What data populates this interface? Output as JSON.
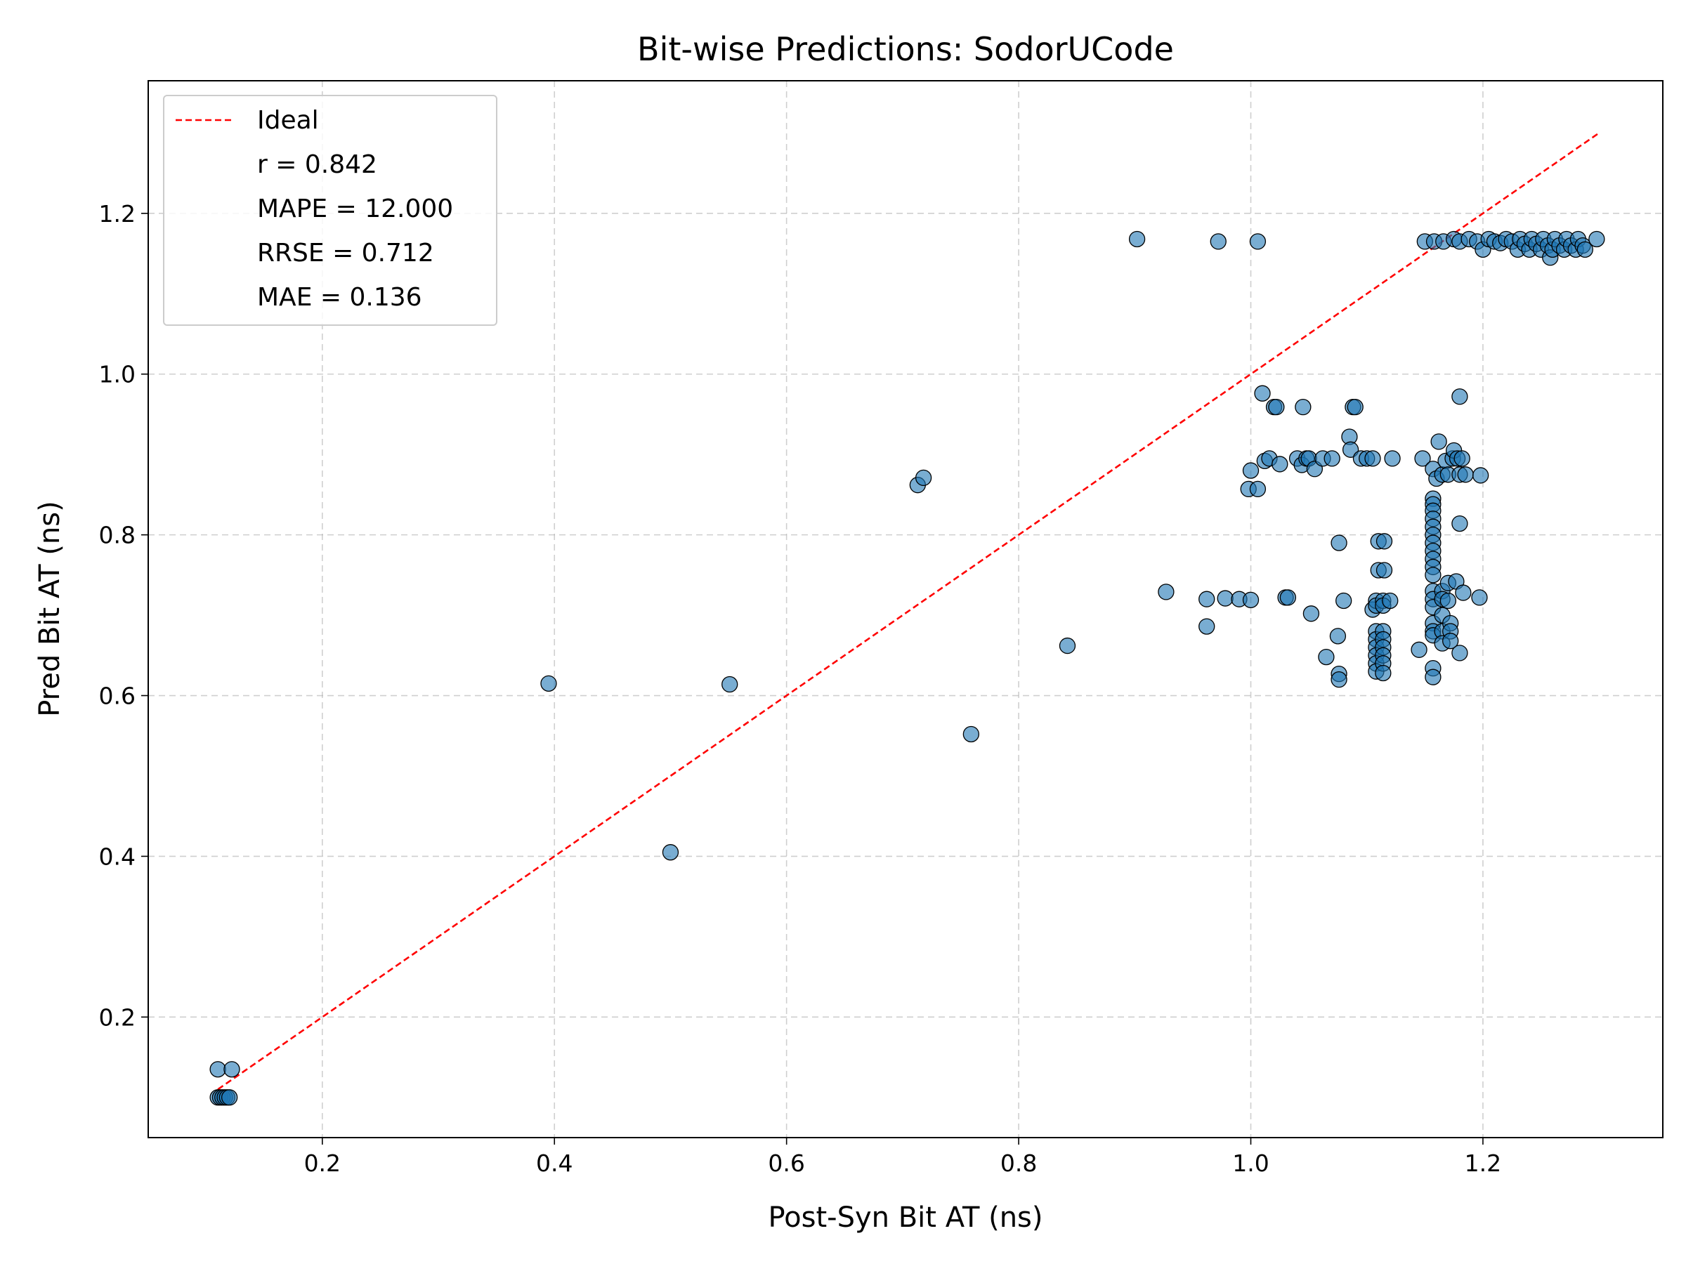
{
  "chart_data": {
    "type": "scatter",
    "title": "Bit-wise Predictions: SodorUCode",
    "xlabel": "Post-Syn Bit AT (ns)",
    "ylabel": "Pred Bit AT (ns)",
    "xlim": [
      0.05,
      1.355
    ],
    "ylim": [
      0.05,
      1.365
    ],
    "xticks": [
      0.2,
      0.4,
      0.6,
      0.8,
      1.0,
      1.2
    ],
    "yticks": [
      0.2,
      0.4,
      0.6,
      0.8,
      1.0,
      1.2
    ],
    "xtick_labels": [
      "0.2",
      "0.4",
      "0.6",
      "0.8",
      "1.0",
      "1.2"
    ],
    "ytick_labels": [
      "0.2",
      "0.4",
      "0.6",
      "0.8",
      "1.0",
      "1.2"
    ],
    "grid": true,
    "legend_position": "top-left",
    "ideal_line": {
      "name": "Ideal",
      "x": [
        0.11,
        1.3
      ],
      "y": [
        0.11,
        1.3
      ],
      "color": "#ff0000",
      "style": "dashed"
    },
    "legend": [
      "Ideal",
      "r = 0.842",
      "MAPE = 12.000",
      "RRSE = 0.712",
      "MAE = 0.136"
    ],
    "point_color": "#1f77b4",
    "point_alpha": 0.6,
    "points": [
      [
        0.11,
        0.135
      ],
      [
        0.122,
        0.135
      ],
      [
        0.11,
        0.1
      ],
      [
        0.112,
        0.1
      ],
      [
        0.114,
        0.1
      ],
      [
        0.116,
        0.1
      ],
      [
        0.118,
        0.1
      ],
      [
        0.12,
        0.1
      ],
      [
        0.395,
        0.615
      ],
      [
        0.5,
        0.405
      ],
      [
        0.551,
        0.614
      ],
      [
        0.713,
        0.862
      ],
      [
        0.718,
        0.871
      ],
      [
        0.759,
        0.552
      ],
      [
        0.842,
        0.662
      ],
      [
        0.902,
        1.168
      ],
      [
        0.972,
        1.165
      ],
      [
        1.006,
        1.165
      ],
      [
        0.927,
        0.729
      ],
      [
        0.962,
        0.72
      ],
      [
        0.962,
        0.686
      ],
      [
        0.978,
        0.721
      ],
      [
        0.99,
        0.72
      ],
      [
        1.0,
        0.719
      ],
      [
        0.998,
        0.857
      ],
      [
        1.0,
        0.88
      ],
      [
        1.006,
        0.857
      ],
      [
        1.01,
        0.976
      ],
      [
        1.012,
        0.892
      ],
      [
        1.016,
        0.895
      ],
      [
        1.02,
        0.959
      ],
      [
        1.022,
        0.959
      ],
      [
        1.025,
        0.888
      ],
      [
        1.03,
        0.722
      ],
      [
        1.032,
        0.722
      ],
      [
        1.04,
        0.895
      ],
      [
        1.044,
        0.887
      ],
      [
        1.045,
        0.959
      ],
      [
        1.048,
        0.895
      ],
      [
        1.05,
        0.895
      ],
      [
        1.052,
        0.702
      ],
      [
        1.055,
        0.882
      ],
      [
        1.062,
        0.895
      ],
      [
        1.065,
        0.648
      ],
      [
        1.07,
        0.895
      ],
      [
        1.075,
        0.674
      ],
      [
        1.076,
        0.79
      ],
      [
        1.076,
        0.627
      ],
      [
        1.076,
        0.62
      ],
      [
        1.08,
        0.718
      ],
      [
        1.085,
        0.922
      ],
      [
        1.086,
        0.906
      ],
      [
        1.088,
        0.959
      ],
      [
        1.09,
        0.959
      ],
      [
        1.095,
        0.895
      ],
      [
        1.1,
        0.895
      ],
      [
        1.105,
        0.895
      ],
      [
        1.105,
        0.707
      ],
      [
        1.108,
        0.718
      ],
      [
        1.108,
        0.712
      ],
      [
        1.108,
        0.68
      ],
      [
        1.108,
        0.67
      ],
      [
        1.108,
        0.66
      ],
      [
        1.108,
        0.65
      ],
      [
        1.108,
        0.64
      ],
      [
        1.108,
        0.63
      ],
      [
        1.11,
        0.792
      ],
      [
        1.11,
        0.756
      ],
      [
        1.114,
        0.718
      ],
      [
        1.114,
        0.712
      ],
      [
        1.114,
        0.68
      ],
      [
        1.114,
        0.67
      ],
      [
        1.114,
        0.66
      ],
      [
        1.114,
        0.65
      ],
      [
        1.114,
        0.64
      ],
      [
        1.114,
        0.628
      ],
      [
        1.115,
        0.792
      ],
      [
        1.115,
        0.756
      ],
      [
        1.12,
        0.718
      ],
      [
        1.122,
        0.895
      ],
      [
        1.145,
        0.657
      ],
      [
        1.148,
        0.895
      ],
      [
        1.15,
        1.165
      ],
      [
        1.158,
        1.165
      ],
      [
        1.157,
        0.845
      ],
      [
        1.157,
        0.838
      ],
      [
        1.157,
        0.83
      ],
      [
        1.157,
        0.82
      ],
      [
        1.157,
        0.81
      ],
      [
        1.157,
        0.8
      ],
      [
        1.157,
        0.79
      ],
      [
        1.157,
        0.78
      ],
      [
        1.157,
        0.77
      ],
      [
        1.157,
        0.76
      ],
      [
        1.157,
        0.75
      ],
      [
        1.157,
        0.73
      ],
      [
        1.157,
        0.72
      ],
      [
        1.157,
        0.71
      ],
      [
        1.157,
        0.69
      ],
      [
        1.157,
        0.68
      ],
      [
        1.157,
        0.675
      ],
      [
        1.157,
        0.634
      ],
      [
        1.157,
        0.623
      ],
      [
        1.157,
        0.882
      ],
      [
        1.16,
        0.87
      ],
      [
        1.162,
        0.916
      ],
      [
        1.165,
        0.875
      ],
      [
        1.165,
        0.73
      ],
      [
        1.165,
        0.72
      ],
      [
        1.165,
        0.7
      ],
      [
        1.165,
        0.68
      ],
      [
        1.165,
        0.665
      ],
      [
        1.168,
        0.892
      ],
      [
        1.17,
        0.875
      ],
      [
        1.17,
        0.74
      ],
      [
        1.17,
        0.718
      ],
      [
        1.172,
        0.69
      ],
      [
        1.172,
        0.68
      ],
      [
        1.172,
        0.668
      ],
      [
        1.174,
        0.895
      ],
      [
        1.175,
        0.905
      ],
      [
        1.177,
        0.742
      ],
      [
        1.178,
        0.895
      ],
      [
        1.18,
        0.875
      ],
      [
        1.18,
        0.972
      ],
      [
        1.18,
        0.814
      ],
      [
        1.18,
        0.653
      ],
      [
        1.182,
        0.895
      ],
      [
        1.183,
        0.728
      ],
      [
        1.185,
        0.875
      ],
      [
        1.197,
        0.722
      ],
      [
        1.198,
        0.874
      ],
      [
        1.166,
        1.165
      ],
      [
        1.175,
        1.168
      ],
      [
        1.18,
        1.165
      ],
      [
        1.188,
        1.168
      ],
      [
        1.195,
        1.165
      ],
      [
        1.2,
        1.155
      ],
      [
        1.205,
        1.168
      ],
      [
        1.21,
        1.165
      ],
      [
        1.215,
        1.163
      ],
      [
        1.22,
        1.168
      ],
      [
        1.225,
        1.165
      ],
      [
        1.23,
        1.155
      ],
      [
        1.232,
        1.168
      ],
      [
        1.236,
        1.162
      ],
      [
        1.24,
        1.155
      ],
      [
        1.242,
        1.168
      ],
      [
        1.246,
        1.162
      ],
      [
        1.25,
        1.155
      ],
      [
        1.252,
        1.168
      ],
      [
        1.256,
        1.16
      ],
      [
        1.258,
        1.145
      ],
      [
        1.26,
        1.155
      ],
      [
        1.262,
        1.168
      ],
      [
        1.266,
        1.16
      ],
      [
        1.27,
        1.155
      ],
      [
        1.272,
        1.168
      ],
      [
        1.276,
        1.16
      ],
      [
        1.28,
        1.155
      ],
      [
        1.282,
        1.168
      ],
      [
        1.286,
        1.16
      ],
      [
        1.288,
        1.155
      ],
      [
        1.298,
        1.168
      ]
    ]
  }
}
